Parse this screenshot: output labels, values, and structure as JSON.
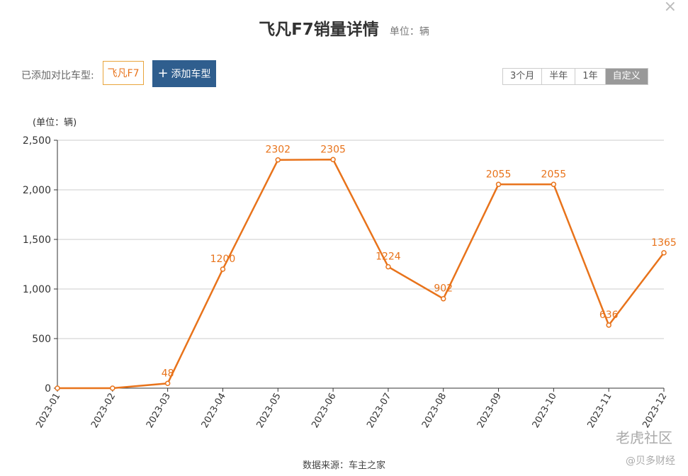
{
  "header": {
    "title": "飞凡F7销量详情",
    "unit": "单位：辆",
    "close_icon": "×"
  },
  "compare": {
    "label": "已添加对比车型:",
    "chip": "飞凡F7",
    "add_button": "添加车型",
    "add_icon": "+"
  },
  "tabs": [
    {
      "label": "3个月",
      "active": false
    },
    {
      "label": "半年",
      "active": false
    },
    {
      "label": "1年",
      "active": false
    },
    {
      "label": "自定义",
      "active": true
    }
  ],
  "chart_unit_label": "(单位：辆)",
  "source": "数据来源：车主之家",
  "watermarks": {
    "w1": "老虎社区",
    "w2": "@贝多财经"
  },
  "colors": {
    "line": "#e8731b",
    "grid": "#cccccc",
    "axis": "#333333",
    "button": "#2f5e8e"
  },
  "chart_data": {
    "type": "line",
    "x": [
      "2023-01",
      "2023-02",
      "2023-03",
      "2023-04",
      "2023-05",
      "2023-06",
      "2023-07",
      "2023-08",
      "2023-09",
      "2023-10",
      "2023-11",
      "2023-12"
    ],
    "series": [
      {
        "values": [
          0,
          0,
          48,
          1200,
          2302,
          2305,
          1224,
          902,
          2055,
          2055,
          636,
          1365
        ],
        "labels": [
          "",
          "",
          "48",
          "1200",
          "2302",
          "2305",
          "1224",
          "902",
          "2055",
          "2055",
          "636",
          "1365"
        ]
      }
    ],
    "ylim": [
      0,
      2500
    ],
    "yticks": [
      "0",
      "500",
      "1,000",
      "1,500",
      "2,000",
      "2,500"
    ],
    "grid": true,
    "legend": "none"
  }
}
